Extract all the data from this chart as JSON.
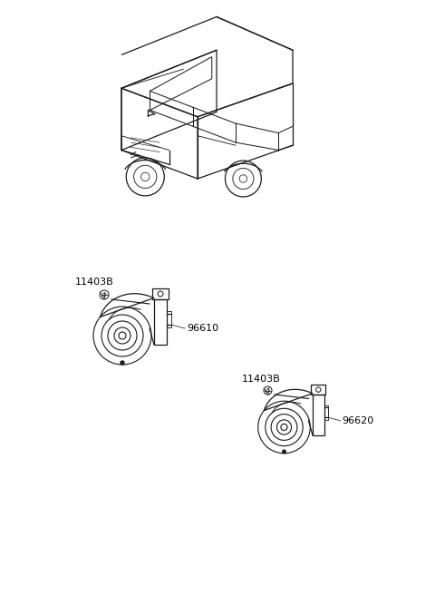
{
  "background_color": "#ffffff",
  "line_color": "#1a1a1a",
  "label_color": "#000000",
  "labels": {
    "bolt1": "11403B",
    "horn1": "96610",
    "bolt2": "11403B",
    "horn2": "96620"
  },
  "figsize": [
    4.8,
    6.56
  ],
  "dpi": 100
}
